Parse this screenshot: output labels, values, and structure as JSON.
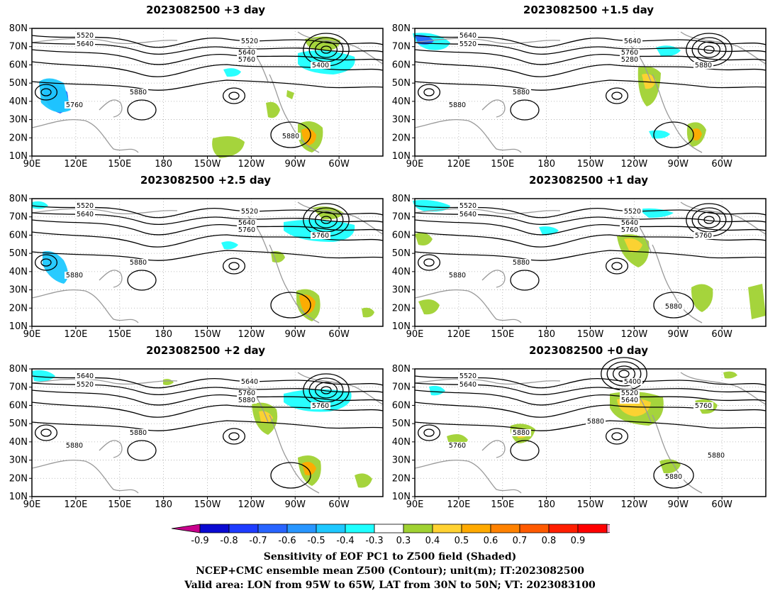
{
  "panels": [
    {
      "title": "2023082500  +3 day",
      "labels": [
        "5520",
        "5640",
        "5520",
        "5640",
        "5760",
        "5400",
        "5760",
        "5880",
        "5880"
      ]
    },
    {
      "title": "2023082500  +1.5 day",
      "labels": [
        "5640",
        "5520",
        "5640",
        "5760",
        "5280",
        "5880",
        "5880",
        "5880"
      ]
    },
    {
      "title": "2023082500  +2.5 day",
      "labels": [
        "5520",
        "5640",
        "5520",
        "5640",
        "5760",
        "5760",
        "5880",
        "5880"
      ]
    },
    {
      "title": "2023082500  +1 day",
      "labels": [
        "5520",
        "5640",
        "5520",
        "5640",
        "5760",
        "5760",
        "5880",
        "5880",
        "5880"
      ]
    },
    {
      "title": "2023082500  +2 day",
      "labels": [
        "5640",
        "5520",
        "5640",
        "5760",
        "5880",
        "5760",
        "5880",
        "5880"
      ]
    },
    {
      "title": "2023082500  +0 day",
      "labels": [
        "5520",
        "5640",
        "5400",
        "5520",
        "5640",
        "5760",
        "5760",
        "5880",
        "5880",
        "5880",
        "5880"
      ]
    }
  ],
  "axes": {
    "lat_ticks": [
      "80N",
      "70N",
      "60N",
      "50N",
      "40N",
      "30N",
      "20N",
      "10N"
    ],
    "lon_ticks": [
      "90E",
      "120E",
      "150E",
      "180",
      "150W",
      "120W",
      "90W",
      "60W"
    ]
  },
  "colorbar": {
    "labels": [
      "-0.9",
      "-0.8",
      "-0.7",
      "-0.6",
      "-0.5",
      "-0.4",
      "-0.3",
      "0.3",
      "0.4",
      "0.5",
      "0.6",
      "0.7",
      "0.8",
      "0.9"
    ],
    "colors": [
      "#c8008c",
      "#0a0ad2",
      "#1e3cff",
      "#2864ff",
      "#2896ff",
      "#1ec8ff",
      "#1effff",
      "#ffffff",
      "#a0d232",
      "#ffd232",
      "#ffaa00",
      "#ff8200",
      "#ff5a00",
      "#ff1e00",
      "#ff0000",
      "#ffa0c8"
    ]
  },
  "captions": [
    "Sensitivity of EOF PC1 to Z500 field (Shaded)",
    "NCEP+CMC ensemble mean Z500 (Contour); unit(m); IT:2023082500",
    "Valid area: LON from 95W to 65W, LAT from 30N to 50N; VT: 2023083100"
  ]
}
